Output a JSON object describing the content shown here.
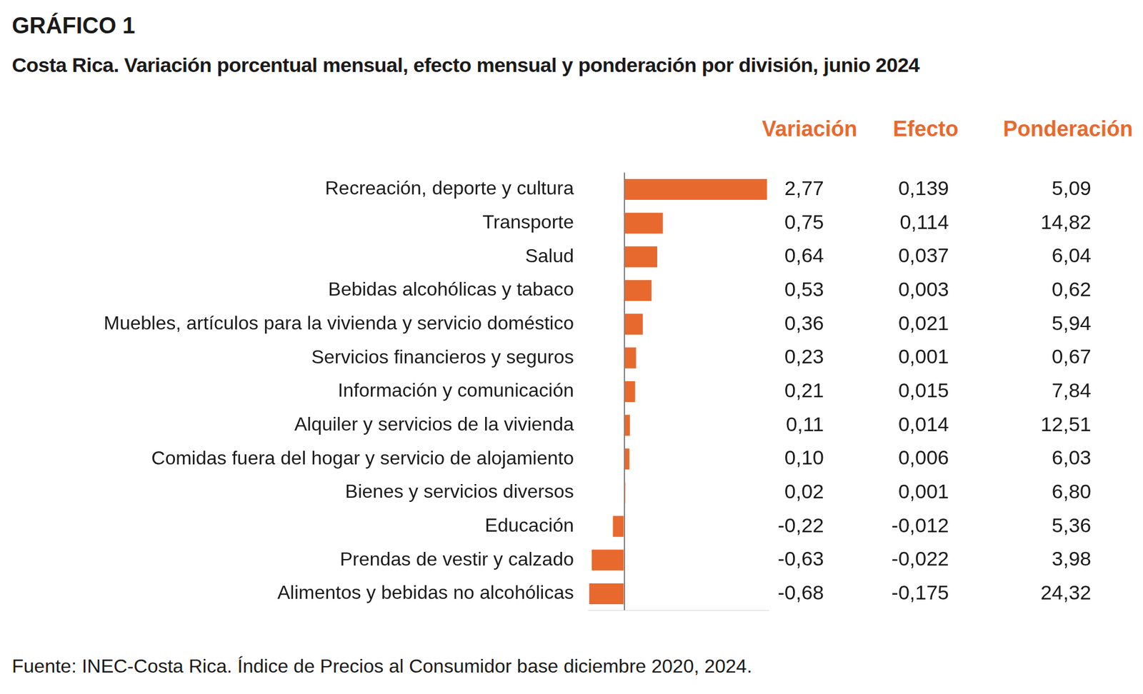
{
  "chart_data": {
    "type": "bar",
    "orientation": "horizontal",
    "title": "GRÁFICO 1",
    "subtitle": "Costa Rica. Variación porcentual mensual, efecto mensual y ponderación por división, junio 2024",
    "categories": [
      "Recreación, deporte y cultura",
      "Transporte",
      "Salud",
      "Bebidas alcohólicas y tabaco",
      "Muebles, artículos para la vivienda y servicio doméstico",
      "Servicios financieros y seguros",
      "Información y comunicación",
      "Alquiler y servicios de la vivienda",
      "Comidas fuera del hogar y servicio de alojamiento",
      "Bienes y servicios diversos",
      "Educación",
      "Prendas de vestir y calzado",
      "Alimentos y bebidas no alcohólicas"
    ],
    "series": [
      {
        "name": "Variación",
        "color": "#E8692E",
        "values": [
          2.77,
          0.75,
          0.64,
          0.53,
          0.36,
          0.23,
          0.21,
          0.11,
          0.1,
          0.02,
          -0.22,
          -0.63,
          -0.68
        ],
        "value_labels": [
          "2,77",
          "0,75",
          "0,64",
          "0,53",
          "0,36",
          "0,23",
          "0,21",
          "0,11",
          "0,10",
          "0,02",
          "-0,22",
          "-0,63",
          "-0,68"
        ]
      }
    ],
    "columns": [
      {
        "name": "Efecto",
        "values": [
          0.139,
          0.114,
          0.037,
          0.003,
          0.021,
          0.001,
          0.015,
          0.014,
          0.006,
          0.001,
          -0.012,
          -0.022,
          -0.175
        ],
        "value_labels": [
          "0,139",
          "0,114",
          "0,037",
          "0,003",
          "0,021",
          "0,001",
          "0,015",
          "0,014",
          "0,006",
          "0,001",
          "-0,012",
          "-0,022",
          "-0,175"
        ]
      },
      {
        "name": "Ponderación",
        "values": [
          5.09,
          14.82,
          6.04,
          0.62,
          5.94,
          0.67,
          7.84,
          12.51,
          6.03,
          6.8,
          5.36,
          3.98,
          24.32
        ],
        "value_labels": [
          "5,09",
          "14,82",
          "6,04",
          "0,62",
          "5,94",
          "0,67",
          "7,84",
          "12,51",
          "6,03",
          "6,80",
          "5,36",
          "3,98",
          "24,32"
        ]
      }
    ],
    "data_labels": true,
    "xlim": [
      -0.7,
      2.8
    ],
    "xticks": [
      0
    ],
    "tick_labels": "y",
    "grid": true,
    "source": "Fuente: INEC-Costa Rica. Índice de Precios al Consumidor base diciembre 2020, 2024."
  }
}
